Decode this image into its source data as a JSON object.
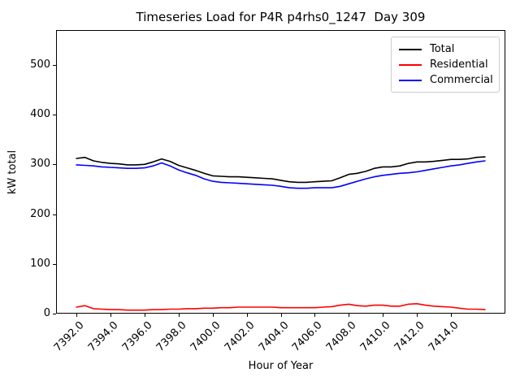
{
  "window": {
    "background": "#ffffff"
  },
  "chart_data": {
    "type": "line",
    "title": "Timeseries Load for P4R p4rhs0_1247  Day 309",
    "xlabel": "Hour of Year",
    "ylabel": "kW total",
    "xlim": [
      7390.8,
      7417.2
    ],
    "ylim": [
      0,
      570
    ],
    "grid": false,
    "legend_position": "upper right",
    "xticks": [
      7392,
      7394,
      7396,
      7398,
      7400,
      7402,
      7404,
      7406,
      7408,
      7410,
      7412,
      7414
    ],
    "xtick_labels": [
      "7392.0",
      "7394.0",
      "7396.0",
      "7398.0",
      "7400.0",
      "7402.0",
      "7404.0",
      "7406.0",
      "7408.0",
      "7410.0",
      "7412.0",
      "7414.0"
    ],
    "xtick_rotation": 45,
    "yticks": [
      0,
      100,
      200,
      300,
      400,
      500
    ],
    "ytick_labels": [
      "0",
      "100",
      "200",
      "300",
      "400",
      "500"
    ],
    "x": [
      7392.0,
      7392.5,
      7393.0,
      7393.5,
      7394.0,
      7394.5,
      7395.0,
      7395.5,
      7396.0,
      7396.5,
      7397.0,
      7397.5,
      7398.0,
      7398.5,
      7399.0,
      7399.5,
      7400.0,
      7400.5,
      7401.0,
      7401.5,
      7402.0,
      7402.5,
      7403.0,
      7403.5,
      7404.0,
      7404.5,
      7405.0,
      7405.5,
      7406.0,
      7406.5,
      7407.0,
      7407.5,
      7408.0,
      7408.5,
      7409.0,
      7409.5,
      7410.0,
      7410.5,
      7411.0,
      7411.5,
      7412.0,
      7412.5,
      7413.0,
      7413.5,
      7414.0,
      7414.5,
      7415.0,
      7415.5,
      7416.0
    ],
    "series": [
      {
        "name": "Total",
        "color": "#000000",
        "values": [
          312,
          314,
          307,
          304,
          302,
          301,
          299,
          299,
          300,
          305,
          311,
          306,
          298,
          293,
          288,
          282,
          277,
          276,
          275,
          275,
          274,
          273,
          272,
          271,
          268,
          265,
          264,
          264,
          265,
          266,
          267,
          273,
          280,
          282,
          286,
          292,
          295,
          295,
          297,
          302,
          305,
          305,
          306,
          308,
          310,
          310,
          311,
          314,
          315
        ]
      },
      {
        "name": "Residential",
        "color": "#ff0000",
        "values": [
          13,
          16,
          10,
          9,
          8,
          8,
          7,
          7,
          7,
          8,
          8,
          9,
          9,
          10,
          10,
          11,
          11,
          12,
          12,
          13,
          13,
          13,
          13,
          13,
          12,
          12,
          12,
          12,
          12,
          13,
          14,
          17,
          19,
          16,
          15,
          17,
          17,
          15,
          15,
          19,
          20,
          17,
          15,
          14,
          13,
          11,
          9,
          9,
          8
        ]
      },
      {
        "name": "Commercial",
        "color": "#0000ff",
        "values": [
          299,
          298,
          297,
          295,
          294,
          293,
          292,
          292,
          293,
          297,
          303,
          297,
          289,
          283,
          278,
          271,
          266,
          264,
          263,
          262,
          261,
          260,
          259,
          258,
          256,
          253,
          252,
          252,
          253,
          253,
          253,
          256,
          261,
          266,
          271,
          275,
          278,
          280,
          282,
          283,
          285,
          288,
          291,
          294,
          297,
          299,
          302,
          305,
          307
        ]
      }
    ]
  }
}
